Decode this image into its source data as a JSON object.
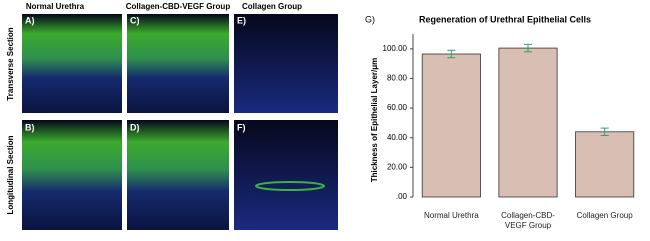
{
  "panels": {
    "column_headers": [
      "Normal Urethra",
      "Collagen-CBD-VEGF Group",
      "Collagen Group"
    ],
    "row_headers": [
      "Transverse Section",
      "Longitudinal Section"
    ],
    "labels": [
      "A)",
      "C)",
      "E)",
      "B)",
      "D)",
      "F)"
    ],
    "chart_label": "G)"
  },
  "chart_data": {
    "type": "bar",
    "title": "Regeneration of Urethral Epithelial Cells",
    "y_label": "Thickness of Epithelial Layer/μm",
    "categories": [
      "Normal Urethra",
      "Collagen-CBD-VEGF Group",
      "Collagen Group"
    ],
    "values": [
      96.5,
      100.5,
      44
    ],
    "errors": [
      2.5,
      2.5,
      2.5
    ],
    "color": "#d9bfb3",
    "error_color": "#2aa566",
    "ylim": [
      0,
      110
    ],
    "yticks": [
      {
        "value": 0,
        "label": ".00"
      },
      {
        "value": 20,
        "label": "20.00"
      },
      {
        "value": 40,
        "label": "40.00"
      },
      {
        "value": 60,
        "label": "60.00"
      },
      {
        "value": 80,
        "label": "80.00"
      },
      {
        "value": 100,
        "label": "100.00"
      }
    ]
  }
}
